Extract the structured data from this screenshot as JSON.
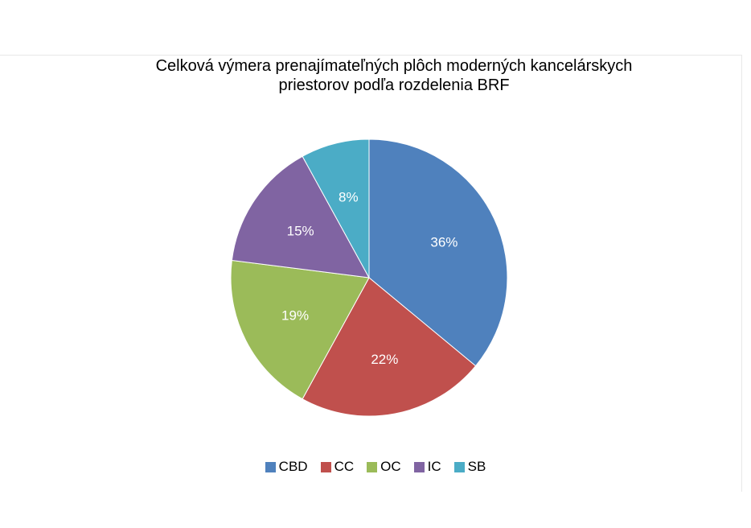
{
  "chart_data": {
    "type": "pie",
    "title_lines": [
      "Celková výmera prenajímateľných plôch moderných kancelárskych",
      "priestorov podľa rozdelenia BRF"
    ],
    "slices": [
      {
        "label": "CBD",
        "value": 36,
        "data_label": "36%",
        "color": "#4F81BD"
      },
      {
        "label": "CC",
        "value": 22,
        "data_label": "22%",
        "color": "#C0504D"
      },
      {
        "label": "OC",
        "value": 19,
        "data_label": "19%",
        "color": "#9BBB59"
      },
      {
        "label": "IC",
        "value": 15,
        "data_label": "15%",
        "color": "#8064A2"
      },
      {
        "label": "SB",
        "value": 8,
        "data_label": "8%",
        "color": "#4BACC6"
      }
    ],
    "legend_position": "bottom"
  }
}
